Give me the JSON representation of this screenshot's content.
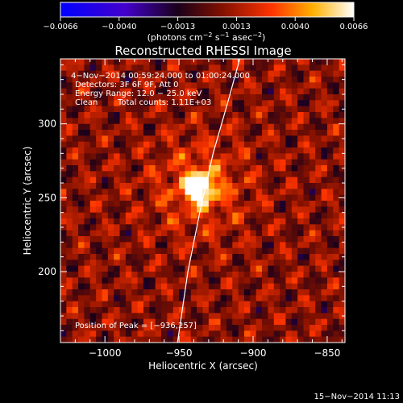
{
  "colorbar": {
    "ticks": [
      "−0.0066",
      "−0.0040",
      "−0.0013",
      "0.0013",
      "0.0040",
      "0.0066"
    ],
    "units_main": "(photons cm",
    "units_sup1": "−2",
    "units_mid": " s",
    "units_sup2": "−1",
    "units_tail": " asec",
    "units_sup3": "−2",
    "units_close": ")",
    "stops": [
      {
        "offset": 0.0,
        "color": "#0000ff"
      },
      {
        "offset": 0.22,
        "color": "#4400cc"
      },
      {
        "offset": 0.4,
        "color": "#1a001a"
      },
      {
        "offset": 0.55,
        "color": "#801000"
      },
      {
        "offset": 0.72,
        "color": "#ff3300"
      },
      {
        "offset": 0.86,
        "color": "#ffb000"
      },
      {
        "offset": 1.0,
        "color": "#ffffff"
      }
    ]
  },
  "chart_data": {
    "type": "heatmap",
    "title": "Reconstructed RHESSI Image",
    "xlabel": "Heliocentric X (arcsec)",
    "ylabel": "Heliocentric Y (arcsec)",
    "xlim": [
      -1030,
      -838
    ],
    "ylim": [
      152,
      344
    ],
    "xticks": [
      -1000,
      -950,
      -900,
      -850
    ],
    "xtick_labels": [
      "−1000",
      "−950",
      "−900",
      "−850"
    ],
    "yticks": [
      200,
      250,
      300
    ],
    "ytick_labels": [
      "200",
      "250",
      "300"
    ],
    "peak": {
      "x": -936,
      "y": 257,
      "label": "Position of Peak = [−936,257]"
    },
    "limb_curve": [
      {
        "x": -951,
        "y": 152
      },
      {
        "x": -944,
        "y": 200
      },
      {
        "x": -936,
        "y": 240
      },
      {
        "x": -927,
        "y": 280
      },
      {
        "x": -917,
        "y": 315
      },
      {
        "x": -909,
        "y": 344
      }
    ],
    "info": {
      "time": "4−Nov−2014 00:59:24.000 to 01:00:24.000",
      "detectors": "Detectors: 3F 6F 9F, Att 0",
      "energy": "Energy Range: 12.0 − 25.0 keV",
      "clean": "Clean",
      "counts": "Total counts: 1.11E+03"
    },
    "colormap_range": [
      -0.0066,
      0.0066
    ]
  },
  "footer": {
    "date": "15−Nov−2014 11:13"
  },
  "colors": {
    "background": "#000000",
    "axes": "#ffffff",
    "limb": "#ffffff"
  }
}
